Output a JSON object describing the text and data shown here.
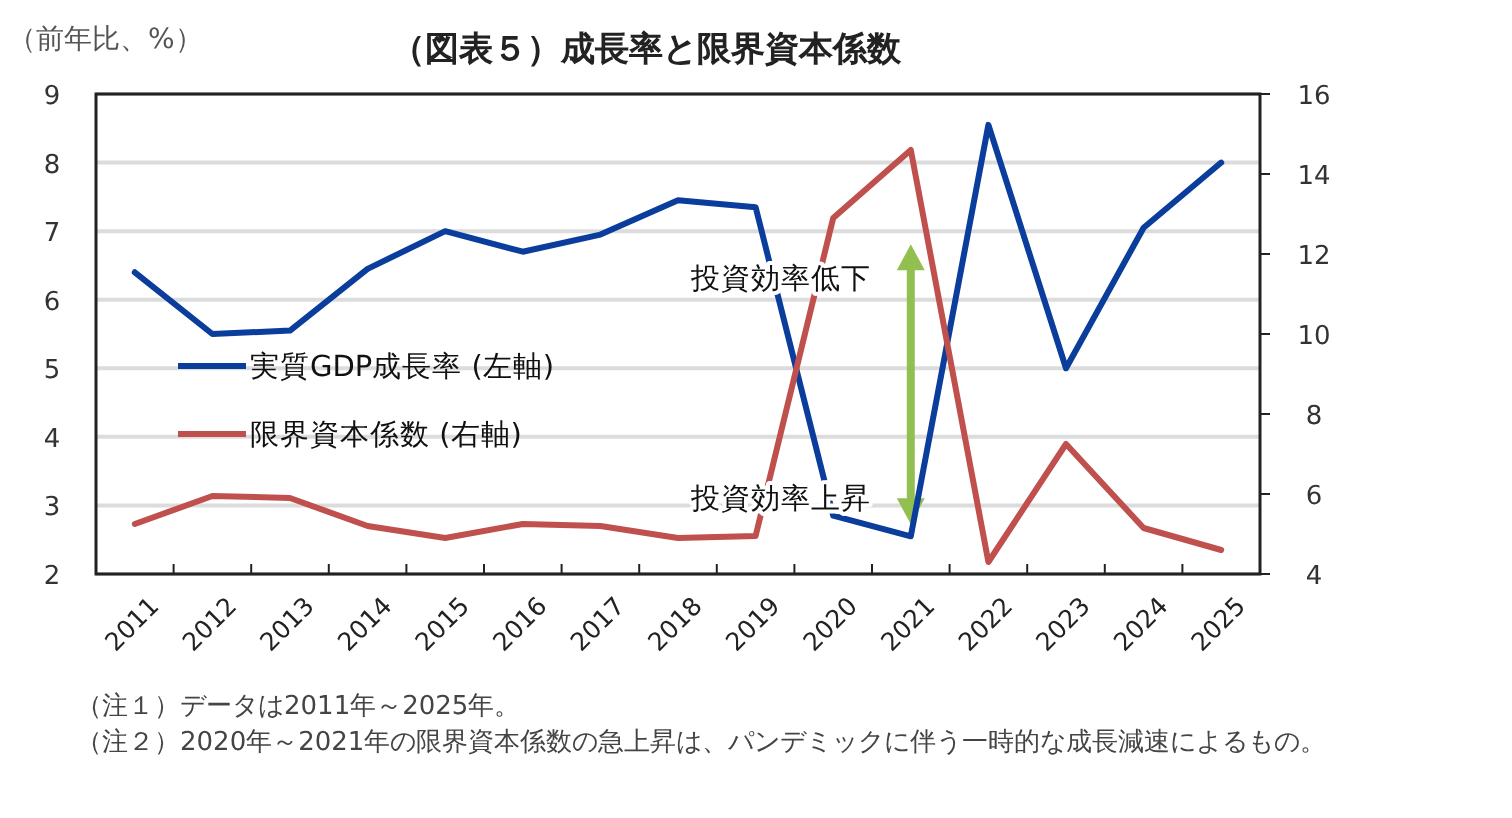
{
  "chart_data": {
    "type": "line",
    "title": "（図表５）成長率と限界資本係数",
    "ylabel": "（前年比、%）",
    "categories": [
      "2011",
      "2012",
      "2013",
      "2014",
      "2015",
      "2016",
      "2017",
      "2018",
      "2019",
      "2020",
      "2021",
      "2022",
      "2023",
      "2024",
      "2025"
    ],
    "series": [
      {
        "name": "実質GDP成長率 (左軸)",
        "color": "#0a3d9c",
        "values": [
          6.4,
          5.5,
          5.55,
          6.45,
          7.0,
          6.7,
          6.95,
          7.45,
          7.35,
          2.85,
          2.55,
          8.55,
          5.0,
          7.05,
          8.0
        ]
      },
      {
        "name": "限界資本係数 (右軸)",
        "color": "#c0504d",
        "axis": "y2",
        "values": [
          5.25,
          5.95,
          5.9,
          5.2,
          4.9,
          5.25,
          5.2,
          4.9,
          4.95,
          12.9,
          14.6,
          4.3,
          7.25,
          5.15,
          4.6
        ]
      }
    ],
    "ylim": [
      2,
      9
    ],
    "yticks": [
      2,
      3,
      4,
      5,
      6,
      7,
      8,
      9
    ],
    "y2lim": [
      4,
      16
    ],
    "y2ticks": [
      4,
      6,
      8,
      10,
      12,
      14,
      16
    ],
    "grid": "y",
    "legend": "left",
    "marker": "none",
    "line_style": "solid",
    "annotations": [
      "投資効率低下",
      "投資効率上昇",
      "（注１）データは2011年～2025年。",
      "（注２）2020年～2021年の限界資本係数の急上昇は、パンデミックに伴う一時的な成長減速によるもの。"
    ]
  }
}
